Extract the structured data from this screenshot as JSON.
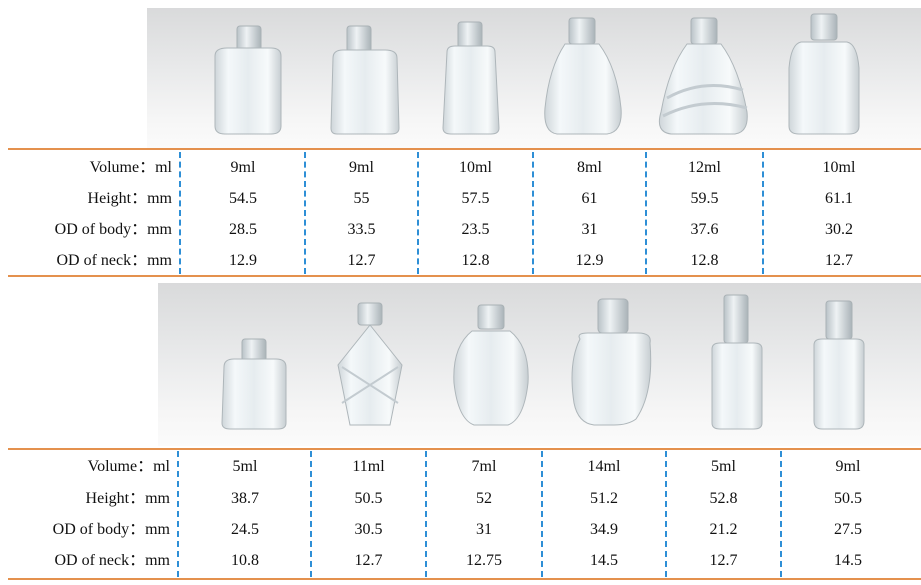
{
  "labels": {
    "volume": "Volume：ml",
    "height": "Height：mm",
    "od_body": "OD of body：mm",
    "od_neck": "OD of neck：mm"
  },
  "table1": {
    "volume": [
      "9ml",
      "9ml",
      "10ml",
      "8ml",
      "12ml",
      "10ml"
    ],
    "height": [
      "54.5",
      "55",
      "57.5",
      "61",
      "59.5",
      "61.1"
    ],
    "od_body": [
      "28.5",
      "33.5",
      "23.5",
      "31",
      "37.6",
      "30.2"
    ],
    "od_neck": [
      "12.9",
      "12.7",
      "12.8",
      "12.9",
      "12.8",
      "12.7"
    ]
  },
  "table2": {
    "volume": [
      "5ml",
      "11ml",
      "7ml",
      "14ml",
      "5ml",
      "9ml"
    ],
    "height": [
      "38.7",
      "50.5",
      "52",
      "51.2",
      "52.8",
      "50.5"
    ],
    "od_body": [
      "24.5",
      "30.5",
      "31",
      "34.9",
      "21.2",
      "27.5"
    ],
    "od_neck": [
      "10.8",
      "12.7",
      "12.75",
      "14.5",
      "12.7",
      "14.5"
    ]
  },
  "colors": {
    "rule": "#e4914e",
    "divider": "#2e8fd6",
    "glass": "#eef3f6"
  }
}
